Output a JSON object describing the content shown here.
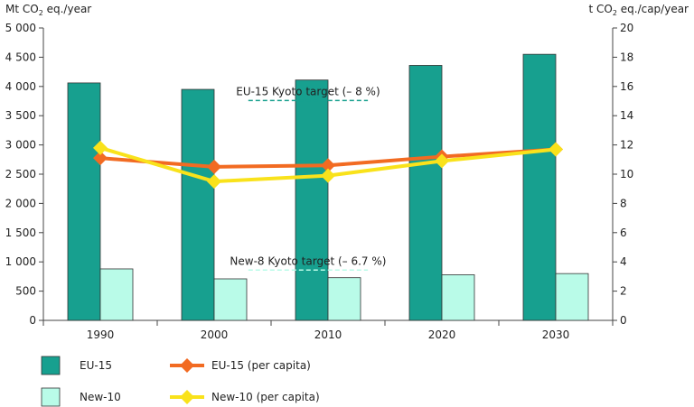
{
  "chart_data": {
    "type": "bar",
    "categories": [
      "1990",
      "2000",
      "2010",
      "2020",
      "2030"
    ],
    "series": [
      {
        "name": "EU-15",
        "kind": "bar",
        "axis": "left",
        "color": "#17a08f",
        "values": [
          4060,
          3950,
          4110,
          4360,
          4550
        ]
      },
      {
        "name": "New-10",
        "kind": "bar",
        "axis": "left",
        "color": "#b9fbe8",
        "values": [
          880,
          710,
          730,
          780,
          800
        ]
      },
      {
        "name": "EU-15 (per capita)",
        "kind": "line",
        "axis": "right",
        "color": "#f26b22",
        "values": [
          11.1,
          10.5,
          10.6,
          11.2,
          11.7
        ]
      },
      {
        "name": "New-10 (per capita)",
        "kind": "line",
        "axis": "right",
        "color": "#f9e21b",
        "values": [
          11.8,
          9.5,
          9.9,
          10.9,
          11.7
        ]
      }
    ],
    "y_left": {
      "label_prefix": "Mt CO",
      "label_sub": "2",
      "label_suffix": " eq./year",
      "lim": [
        0,
        5000
      ],
      "ticks": [
        0,
        500,
        1000,
        1500,
        2000,
        2500,
        3000,
        3500,
        4000,
        4500,
        5000
      ],
      "tick_labels": [
        "0",
        "500",
        "1 000",
        "1 500",
        "2 000",
        "2 500",
        "3 000",
        "3 500",
        "4 000",
        "4 500",
        "5 000"
      ]
    },
    "y_right": {
      "label_prefix": "t CO",
      "label_sub": "2",
      "label_suffix": " eq./cap/year",
      "lim": [
        0,
        20
      ],
      "ticks": [
        0,
        2,
        4,
        6,
        8,
        10,
        12,
        14,
        16,
        18,
        20
      ],
      "tick_labels": [
        "0",
        "2",
        "4",
        "6",
        "8",
        "10",
        "12",
        "14",
        "16",
        "18",
        "20"
      ]
    },
    "annotations": [
      {
        "text": "EU-15 Kyoto target (– 8 %)",
        "value": 3760,
        "axis": "left",
        "from": 1.8,
        "to": 2.85,
        "color": "#17a08f"
      },
      {
        "text": "New-8 Kyoto target (– 6.7 %)",
        "value": 860,
        "axis": "left",
        "from": 1.8,
        "to": 2.85,
        "color": "#b9fbe8"
      }
    ],
    "legend": {
      "placement": "bottom",
      "items": [
        {
          "label": "EU-15",
          "series": 0
        },
        {
          "label": "EU-15 (per capita)",
          "series": 2
        },
        {
          "label": "New-10",
          "series": 1
        },
        {
          "label": "New-10 (per capita)",
          "series": 3
        }
      ]
    },
    "grid": false
  }
}
